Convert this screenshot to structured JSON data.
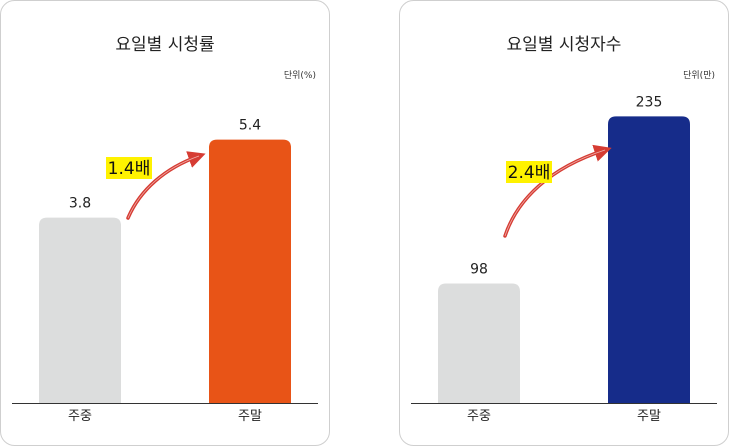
{
  "chart_data": [
    {
      "type": "bar",
      "title": "요일별 시청률",
      "unit_label": "단위(%)",
      "categories": [
        "주중",
        "주말"
      ],
      "values": [
        3.8,
        5.4
      ],
      "value_labels": [
        "3.8",
        "5.4"
      ],
      "bar_colors": [
        "#dcdddd",
        "#e85417"
      ],
      "annotation": "1.4배",
      "annotation_color": "#fff200",
      "arrow_color": "#d63c33",
      "ylim": [
        0,
        6.15
      ]
    },
    {
      "type": "bar",
      "title": "요일별 시청자수",
      "unit_label": "단위(만)",
      "categories": [
        "주중",
        "주말"
      ],
      "values": [
        98,
        235
      ],
      "value_labels": [
        "98",
        "235"
      ],
      "bar_colors": [
        "#dcdddd",
        "#162c8a"
      ],
      "annotation": "2.4배",
      "annotation_color": "#fff200",
      "arrow_color": "#d63c33",
      "ylim": [
        0,
        246
      ]
    }
  ]
}
